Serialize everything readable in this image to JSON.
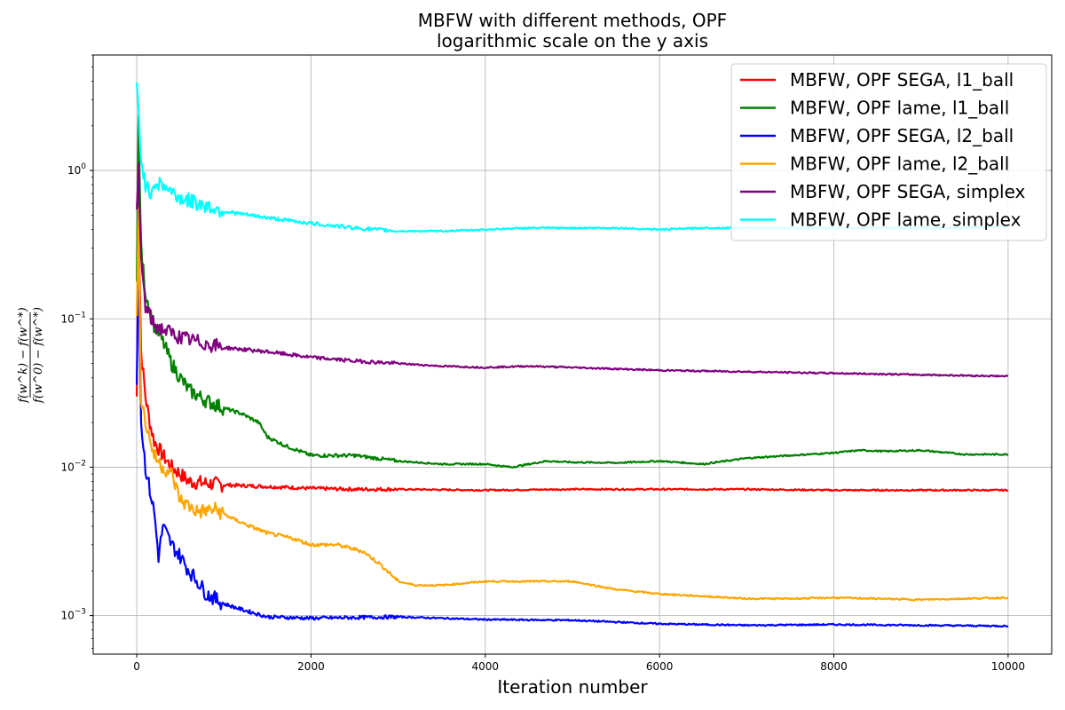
{
  "chart_data": {
    "type": "line",
    "title": "MBFW with different methods, OPF",
    "subtitle": "logarithmic scale on the y axis",
    "xlabel": "Iteration number",
    "ylabel": "f(w^k) − f(w^*) / f(w^0) − f(w^*)",
    "ylabel_numerator": "f(w^k) − f(w^*)",
    "ylabel_denominator": "f(w^0) − f(w^*)",
    "xlim": [
      -500,
      10500
    ],
    "ylim": [
      0.00055,
      6
    ],
    "yscale": "log",
    "grid": true,
    "legend_position": "top-right",
    "x_ticks": [
      0,
      2000,
      4000,
      6000,
      8000,
      10000
    ],
    "x_tick_labels": [
      "0",
      "2000",
      "4000",
      "6000",
      "8000",
      "10000"
    ],
    "y_ticks": [
      0.001,
      0.01,
      0.1,
      1
    ],
    "y_tick_labels": [
      {
        "base": "10",
        "exp": "−3"
      },
      {
        "base": "10",
        "exp": "−2"
      },
      {
        "base": "10",
        "exp": "−1"
      },
      {
        "base": "10",
        "exp": "0"
      }
    ],
    "series": [
      {
        "name": "MBFW, OPF SEGA, l1_ball",
        "color": "#ff0000",
        "points": [
          [
            0,
            0.03
          ],
          [
            20,
            0.5
          ],
          [
            50,
            0.06
          ],
          [
            100,
            0.03
          ],
          [
            150,
            0.02
          ],
          [
            200,
            0.015
          ],
          [
            300,
            0.012
          ],
          [
            400,
            0.01
          ],
          [
            500,
            0.009
          ],
          [
            600,
            0.008
          ],
          [
            800,
            0.0078
          ],
          [
            1000,
            0.0076
          ],
          [
            1500,
            0.0074
          ],
          [
            2000,
            0.0072
          ],
          [
            2500,
            0.0071
          ],
          [
            3000,
            0.0071
          ],
          [
            4000,
            0.007
          ],
          [
            5000,
            0.0071
          ],
          [
            6000,
            0.0071
          ],
          [
            7000,
            0.0071
          ],
          [
            8000,
            0.007
          ],
          [
            9000,
            0.007
          ],
          [
            10000,
            0.007
          ]
        ]
      },
      {
        "name": "MBFW, OPF lame, l1_ball",
        "color": "#008000",
        "points": [
          [
            0,
            0.2
          ],
          [
            20,
            2.2
          ],
          [
            50,
            0.3
          ],
          [
            100,
            0.15
          ],
          [
            200,
            0.09
          ],
          [
            300,
            0.07
          ],
          [
            400,
            0.05
          ],
          [
            500,
            0.04
          ],
          [
            600,
            0.033
          ],
          [
            800,
            0.028
          ],
          [
            1000,
            0.025
          ],
          [
            1200,
            0.023
          ],
          [
            1400,
            0.02
          ],
          [
            1500,
            0.016
          ],
          [
            1700,
            0.014
          ],
          [
            2000,
            0.012
          ],
          [
            2500,
            0.012
          ],
          [
            3000,
            0.011
          ],
          [
            3500,
            0.0105
          ],
          [
            4000,
            0.0105
          ],
          [
            4300,
            0.01
          ],
          [
            4700,
            0.011
          ],
          [
            5000,
            0.0108
          ],
          [
            5500,
            0.0107
          ],
          [
            6000,
            0.011
          ],
          [
            6500,
            0.0105
          ],
          [
            7000,
            0.0115
          ],
          [
            7500,
            0.012
          ],
          [
            8000,
            0.0125
          ],
          [
            8300,
            0.013
          ],
          [
            8600,
            0.0128
          ],
          [
            9000,
            0.013
          ],
          [
            9500,
            0.0122
          ],
          [
            10000,
            0.0122
          ]
        ]
      },
      {
        "name": "MBFW, OPF SEGA, l2_ball",
        "color": "#0000ff",
        "points": [
          [
            0,
            0.04
          ],
          [
            20,
            0.3
          ],
          [
            50,
            0.02
          ],
          [
            100,
            0.01
          ],
          [
            150,
            0.007
          ],
          [
            200,
            0.005
          ],
          [
            250,
            0.0025
          ],
          [
            300,
            0.004
          ],
          [
            400,
            0.003
          ],
          [
            500,
            0.0025
          ],
          [
            600,
            0.002
          ],
          [
            700,
            0.0017
          ],
          [
            800,
            0.0014
          ],
          [
            1000,
            0.0012
          ],
          [
            1200,
            0.0011
          ],
          [
            1500,
            0.00098
          ],
          [
            2000,
            0.00096
          ],
          [
            2500,
            0.00097
          ],
          [
            3000,
            0.00098
          ],
          [
            4000,
            0.00094
          ],
          [
            5000,
            0.00093
          ],
          [
            6000,
            0.00088
          ],
          [
            7000,
            0.00086
          ],
          [
            8000,
            0.00087
          ],
          [
            9000,
            0.00086
          ],
          [
            10000,
            0.00085
          ]
        ]
      },
      {
        "name": "MBFW, OPF lame, l2_ball",
        "color": "#ffa500",
        "points": [
          [
            0,
            0.1
          ],
          [
            20,
            0.5
          ],
          [
            50,
            0.03
          ],
          [
            100,
            0.02
          ],
          [
            200,
            0.012
          ],
          [
            300,
            0.01
          ],
          [
            400,
            0.009
          ],
          [
            500,
            0.006
          ],
          [
            700,
            0.005
          ],
          [
            900,
            0.0052
          ],
          [
            1100,
            0.0045
          ],
          [
            1300,
            0.004
          ],
          [
            1500,
            0.0036
          ],
          [
            1800,
            0.0033
          ],
          [
            2000,
            0.003
          ],
          [
            2300,
            0.003
          ],
          [
            2600,
            0.0027
          ],
          [
            2800,
            0.0022
          ],
          [
            3000,
            0.0017
          ],
          [
            3200,
            0.0016
          ],
          [
            3500,
            0.0016
          ],
          [
            4000,
            0.0017
          ],
          [
            4500,
            0.0017
          ],
          [
            5000,
            0.0017
          ],
          [
            5500,
            0.0015
          ],
          [
            6000,
            0.0014
          ],
          [
            6500,
            0.00135
          ],
          [
            7000,
            0.0013
          ],
          [
            7500,
            0.0013
          ],
          [
            8000,
            0.00132
          ],
          [
            8500,
            0.0013
          ],
          [
            9000,
            0.00128
          ],
          [
            9500,
            0.0013
          ],
          [
            10000,
            0.00132
          ]
        ]
      },
      {
        "name": "MBFW, OPF SEGA, simplex",
        "color": "#800080",
        "points": [
          [
            0,
            0.5
          ],
          [
            20,
            1.0
          ],
          [
            50,
            0.25
          ],
          [
            100,
            0.12
          ],
          [
            200,
            0.09
          ],
          [
            300,
            0.085
          ],
          [
            400,
            0.08
          ],
          [
            500,
            0.075
          ],
          [
            700,
            0.07
          ],
          [
            1000,
            0.064
          ],
          [
            1500,
            0.06
          ],
          [
            2000,
            0.055
          ],
          [
            2500,
            0.052
          ],
          [
            3000,
            0.05
          ],
          [
            3500,
            0.048
          ],
          [
            4000,
            0.047
          ],
          [
            4500,
            0.048
          ],
          [
            5000,
            0.047
          ],
          [
            6000,
            0.045
          ],
          [
            7000,
            0.044
          ],
          [
            8000,
            0.043
          ],
          [
            9000,
            0.042
          ],
          [
            10000,
            0.041
          ]
        ]
      },
      {
        "name": "MBFW, OPF lame, simplex",
        "color": "#00ffff",
        "points": [
          [
            0,
            3.8
          ],
          [
            20,
            2.5
          ],
          [
            50,
            1.2
          ],
          [
            100,
            0.8
          ],
          [
            150,
            0.7
          ],
          [
            200,
            0.82
          ],
          [
            300,
            0.8
          ],
          [
            400,
            0.72
          ],
          [
            500,
            0.65
          ],
          [
            700,
            0.6
          ],
          [
            1000,
            0.53
          ],
          [
            1500,
            0.48
          ],
          [
            2000,
            0.44
          ],
          [
            2500,
            0.41
          ],
          [
            3000,
            0.39
          ],
          [
            3500,
            0.39
          ],
          [
            4000,
            0.4
          ],
          [
            4500,
            0.41
          ],
          [
            5000,
            0.41
          ],
          [
            5500,
            0.41
          ],
          [
            6000,
            0.4
          ],
          [
            6500,
            0.41
          ],
          [
            7000,
            0.41
          ],
          [
            7500,
            0.41
          ],
          [
            8000,
            0.41
          ],
          [
            8500,
            0.41
          ],
          [
            9000,
            0.41
          ],
          [
            9500,
            0.41
          ],
          [
            10000,
            0.42
          ]
        ]
      }
    ]
  }
}
